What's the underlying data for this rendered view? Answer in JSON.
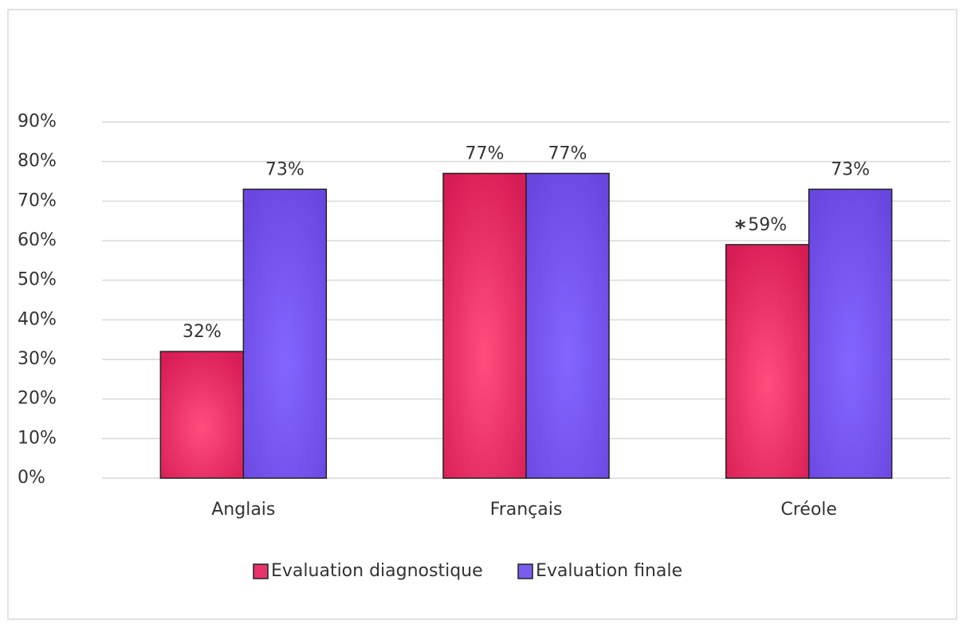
{
  "chart_data": {
    "type": "bar",
    "categories": [
      "Anglais",
      "Français",
      "Créole"
    ],
    "series": [
      {
        "name": "Evaluation diagnostique",
        "color": "#e8336a",
        "values": [
          32,
          77,
          59
        ],
        "value_labels": [
          "32%",
          "77%",
          "59%"
        ]
      },
      {
        "name": "Evaluation finale",
        "color": "#7b5cf0",
        "values": [
          73,
          77,
          73
        ],
        "value_labels": [
          "73%",
          "77%",
          "73%"
        ]
      }
    ],
    "annotations": [
      {
        "text": "*",
        "series": 0,
        "index": 2
      }
    ],
    "ylim": [
      0,
      90
    ],
    "yticks": [
      {
        "value": 0,
        "label": "0%"
      },
      {
        "value": 10,
        "label": "10%"
      },
      {
        "value": 20,
        "label": "20%"
      },
      {
        "value": 30,
        "label": "30%"
      },
      {
        "value": 40,
        "label": "40%"
      },
      {
        "value": 50,
        "label": "50%"
      },
      {
        "value": 60,
        "label": "60%"
      },
      {
        "value": 70,
        "label": "70%"
      },
      {
        "value": 80,
        "label": "80%"
      },
      {
        "value": 90,
        "label": "90%"
      }
    ],
    "grid": true,
    "legend": "bottom"
  }
}
